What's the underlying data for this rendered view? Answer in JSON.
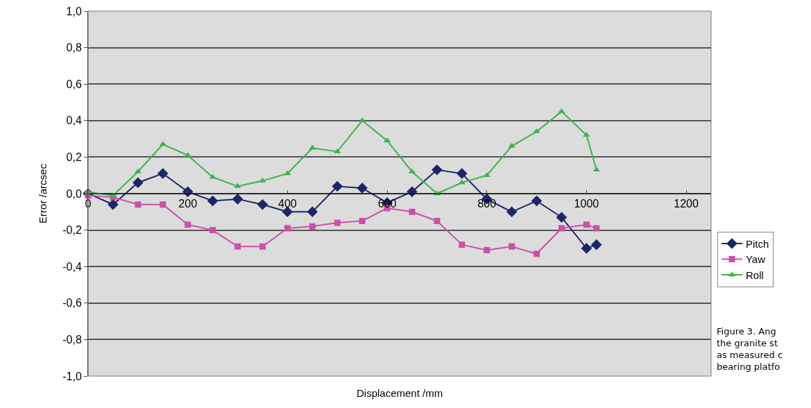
{
  "chart_data": {
    "type": "line",
    "xlabel": "Displacement /mm",
    "ylabel": "Error /arcsec",
    "x": [
      0,
      50,
      100,
      150,
      200,
      250,
      300,
      350,
      400,
      450,
      500,
      550,
      600,
      650,
      700,
      750,
      800,
      850,
      900,
      950,
      1000,
      1020
    ],
    "series": [
      {
        "name": "Pitch",
        "color": "#1c2568",
        "marker": "diamond",
        "values": [
          0,
          -0.06,
          0.06,
          0.11,
          0.01,
          -0.04,
          -0.03,
          -0.06,
          -0.1,
          -0.1,
          0.04,
          0.03,
          -0.05,
          0.01,
          0.13,
          0.11,
          -0.03,
          -0.1,
          -0.04,
          -0.13,
          -0.3,
          -0.28
        ]
      },
      {
        "name": "Yaw",
        "color": "#cc4fa8",
        "marker": "square",
        "values": [
          -0.01,
          -0.02,
          -0.06,
          -0.06,
          -0.17,
          -0.2,
          -0.29,
          -0.29,
          -0.19,
          -0.18,
          -0.16,
          -0.15,
          -0.08,
          -0.1,
          -0.15,
          -0.28,
          -0.31,
          -0.29,
          -0.33,
          -0.19,
          -0.17,
          -0.19
        ]
      },
      {
        "name": "Roll",
        "color": "#3bb44a",
        "marker": "triangle",
        "values": [
          0.01,
          -0.01,
          0.12,
          0.27,
          0.21,
          0.09,
          0.04,
          0.07,
          0.11,
          0.25,
          0.23,
          0.4,
          0.29,
          0.12,
          0,
          0.06,
          0.1,
          0.26,
          0.34,
          0.45,
          0.32,
          0.13
        ]
      }
    ],
    "xlim": [
      0,
      1250
    ],
    "xticks": [
      0,
      200,
      400,
      600,
      800,
      1000,
      1200
    ],
    "ylim": [
      -1,
      1
    ],
    "yticks": [
      {
        "value": -1,
        "label": "-1,0"
      },
      {
        "value": -0.8,
        "label": "-0,8"
      },
      {
        "value": -0.6,
        "label": "-0,6"
      },
      {
        "value": -0.4,
        "label": "-0,4"
      },
      {
        "value": -0.2,
        "label": "-0,2"
      },
      {
        "value": 0,
        "label": "0,0"
      },
      {
        "value": 0.2,
        "label": "0,2"
      },
      {
        "value": 0.4,
        "label": "0,4"
      },
      {
        "value": 0.6,
        "label": "0,6"
      },
      {
        "value": 0.8,
        "label": "0,8"
      },
      {
        "value": 1,
        "label": "1,0"
      }
    ],
    "grid": "y",
    "legend": "right",
    "line_style": "solid",
    "annotations": [
      "Figure 3. Ang\nthe granite st\nas measured c\nbearing platfo"
    ]
  }
}
